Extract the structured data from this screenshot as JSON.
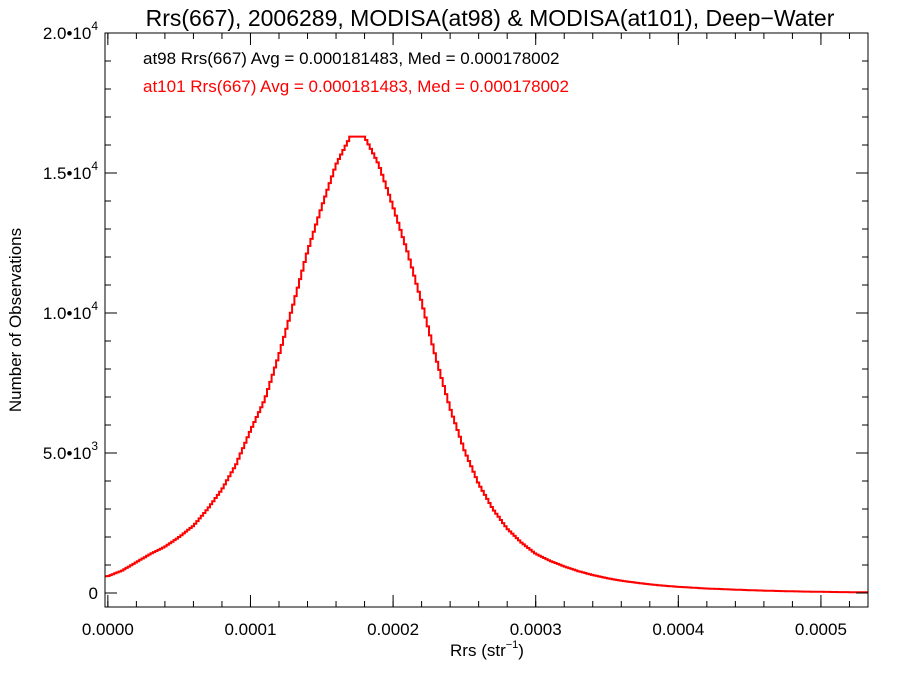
{
  "chart_data": {
    "type": "step",
    "title": "Rrs(667), 2006289, MODISA(at98) & MODISA(at101), Deep−Water",
    "xlabel": "Rrs (str",
    "xlabel_sup": "−1",
    "xlabel_close": ")",
    "ylabel": "Number of Observations",
    "xlim": [
      -2e-06,
      0.000533
    ],
    "ylim": [
      -500,
      20000
    ],
    "grid": false,
    "x_ticks": [
      {
        "value": 0.0,
        "label": "0.0000"
      },
      {
        "value": 0.0001,
        "label": "0.0001"
      },
      {
        "value": 0.0002,
        "label": "0.0002"
      },
      {
        "value": 0.0003,
        "label": "0.0003"
      },
      {
        "value": 0.0004,
        "label": "0.0004"
      },
      {
        "value": 0.0005,
        "label": "0.0005"
      }
    ],
    "y_ticks": [
      {
        "value": 0,
        "base": "0",
        "exp": ""
      },
      {
        "value": 5000,
        "base": "5.0•10",
        "exp": "3"
      },
      {
        "value": 10000,
        "base": "1.0•10",
        "exp": "4"
      },
      {
        "value": 15000,
        "base": "1.5•10",
        "exp": "4"
      },
      {
        "value": 20000,
        "base": "2.0•10",
        "exp": "4"
      }
    ],
    "x_minor_step": 2e-05,
    "y_minor_step": 1000,
    "annotations": [
      {
        "text": "at98 Rrs(667) Avg = 0.000181483, Med = 0.000178002",
        "color": "#000000"
      },
      {
        "text": "at101 Rrs(667) Avg = 0.000181483, Med = 0.000178002",
        "color": "#ff0000"
      }
    ],
    "series": [
      {
        "color": "#ff0000",
        "x": [
          0.0,
          1e-05,
          2e-05,
          3e-05,
          4e-05,
          5e-05,
          6e-05,
          7e-05,
          8e-05,
          9e-05,
          0.0001,
          0.00011,
          0.00012,
          0.00013,
          0.00014,
          0.00015,
          0.00016,
          0.00017,
          0.00018,
          0.00019,
          0.0002,
          0.00021,
          0.00022,
          0.00023,
          0.00024,
          0.00025,
          0.00026,
          0.00027,
          0.00028,
          0.00029,
          0.0003,
          0.00031,
          0.00032,
          0.00033,
          0.00034,
          0.00035,
          0.00036,
          0.00037,
          0.00038,
          0.00039,
          0.0004,
          0.00041,
          0.00042,
          0.00043,
          0.00044,
          0.00045,
          0.00046,
          0.00047,
          0.00048,
          0.00049,
          0.0005,
          0.00051,
          0.00052,
          0.00053
        ],
        "y": [
          600,
          800,
          1100,
          1400,
          1650,
          2000,
          2400,
          3000,
          3700,
          4600,
          5800,
          6900,
          8500,
          10300,
          12200,
          13800,
          15300,
          16300,
          16300,
          15300,
          13800,
          12200,
          10400,
          8400,
          6600,
          5100,
          3900,
          3000,
          2300,
          1800,
          1400,
          1150,
          950,
          780,
          640,
          530,
          440,
          370,
          310,
          260,
          220,
          190,
          160,
          140,
          120,
          100,
          85,
          72,
          60,
          50,
          42,
          35,
          30,
          25
        ]
      }
    ]
  }
}
